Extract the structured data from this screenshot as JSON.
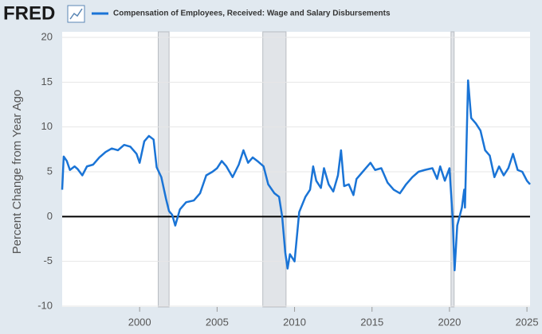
{
  "logo": "FRED",
  "chart_data": {
    "type": "line",
    "y_label": "Percent Change from Year Ago",
    "xlim": [
      1995,
      2025.2
    ],
    "xticks": [
      2000,
      2005,
      2010,
      2015,
      2020,
      2025
    ],
    "ylim": [
      -10,
      20
    ],
    "yticks": [
      -10,
      -5,
      0,
      5,
      10,
      15,
      20
    ],
    "grid": true,
    "recessions": [
      [
        2001.2,
        2001.9
      ],
      [
        2007.95,
        2009.45
      ],
      [
        2020.1,
        2020.3
      ]
    ],
    "x": [
      1995.0,
      1995.1,
      1995.3,
      1995.5,
      1995.8,
      1996.0,
      1996.3,
      1996.6,
      1997.0,
      1997.4,
      1997.8,
      1998.2,
      1998.6,
      1999.0,
      1999.4,
      1999.8,
      2000.0,
      2000.3,
      2000.6,
      2000.9,
      2001.1,
      2001.4,
      2001.7,
      2001.9,
      2002.1,
      2002.3,
      2002.6,
      2003.0,
      2003.5,
      2003.9,
      2004.3,
      2004.7,
      2005.0,
      2005.3,
      2005.6,
      2006.0,
      2006.4,
      2006.7,
      2007.0,
      2007.3,
      2007.6,
      2008.0,
      2008.3,
      2008.7,
      2009.0,
      2009.2,
      2009.4,
      2009.55,
      2009.7,
      2010.0,
      2010.3,
      2010.7,
      2011.0,
      2011.2,
      2011.4,
      2011.7,
      2011.9,
      2012.2,
      2012.5,
      2012.8,
      2013.0,
      2013.2,
      2013.5,
      2013.8,
      2014.0,
      2014.3,
      2014.6,
      2014.9,
      2015.2,
      2015.6,
      2016.0,
      2016.4,
      2016.8,
      2017.2,
      2017.6,
      2018.0,
      2018.4,
      2018.9,
      2019.2,
      2019.4,
      2019.7,
      2020.0,
      2020.2,
      2020.33,
      2020.5,
      2020.8,
      2020.95,
      2021.0,
      2021.2,
      2021.4,
      2021.7,
      2022.0,
      2022.3,
      2022.6,
      2022.9,
      2023.2,
      2023.5,
      2023.8,
      2024.1,
      2024.4,
      2024.7,
      2025.0,
      2025.2
    ],
    "series": [
      {
        "name": "Compensation of Employees, Received: Wage and Salary Disbursements",
        "color": "#1a74d6",
        "values": [
          3.0,
          6.7,
          6.2,
          5.2,
          5.6,
          5.3,
          4.6,
          5.6,
          5.8,
          6.6,
          7.2,
          7.6,
          7.4,
          8.0,
          7.8,
          7.0,
          6.0,
          8.4,
          9.0,
          8.6,
          5.5,
          4.4,
          2.0,
          0.6,
          0.2,
          -1.0,
          0.8,
          1.6,
          1.8,
          2.6,
          4.6,
          5.0,
          5.4,
          6.2,
          5.6,
          4.4,
          5.8,
          7.4,
          6.0,
          6.6,
          6.2,
          5.6,
          3.6,
          2.6,
          2.2,
          0.0,
          -4.0,
          -5.8,
          -4.2,
          -5.0,
          0.5,
          2.2,
          3.0,
          5.6,
          4.0,
          3.2,
          5.4,
          3.6,
          2.8,
          4.6,
          7.4,
          3.4,
          3.6,
          2.4,
          4.2,
          4.8,
          5.4,
          6.0,
          5.2,
          5.4,
          3.8,
          3.0,
          2.6,
          3.6,
          4.4,
          5.0,
          5.2,
          5.4,
          4.2,
          5.6,
          4.0,
          5.4,
          0.0,
          -6.0,
          -1.0,
          1.0,
          3.0,
          1.0,
          15.2,
          11.0,
          10.4,
          9.6,
          7.4,
          6.8,
          4.4,
          5.6,
          4.6,
          5.4,
          7.0,
          5.2,
          5.0,
          4.0,
          3.6
        ]
      }
    ]
  }
}
